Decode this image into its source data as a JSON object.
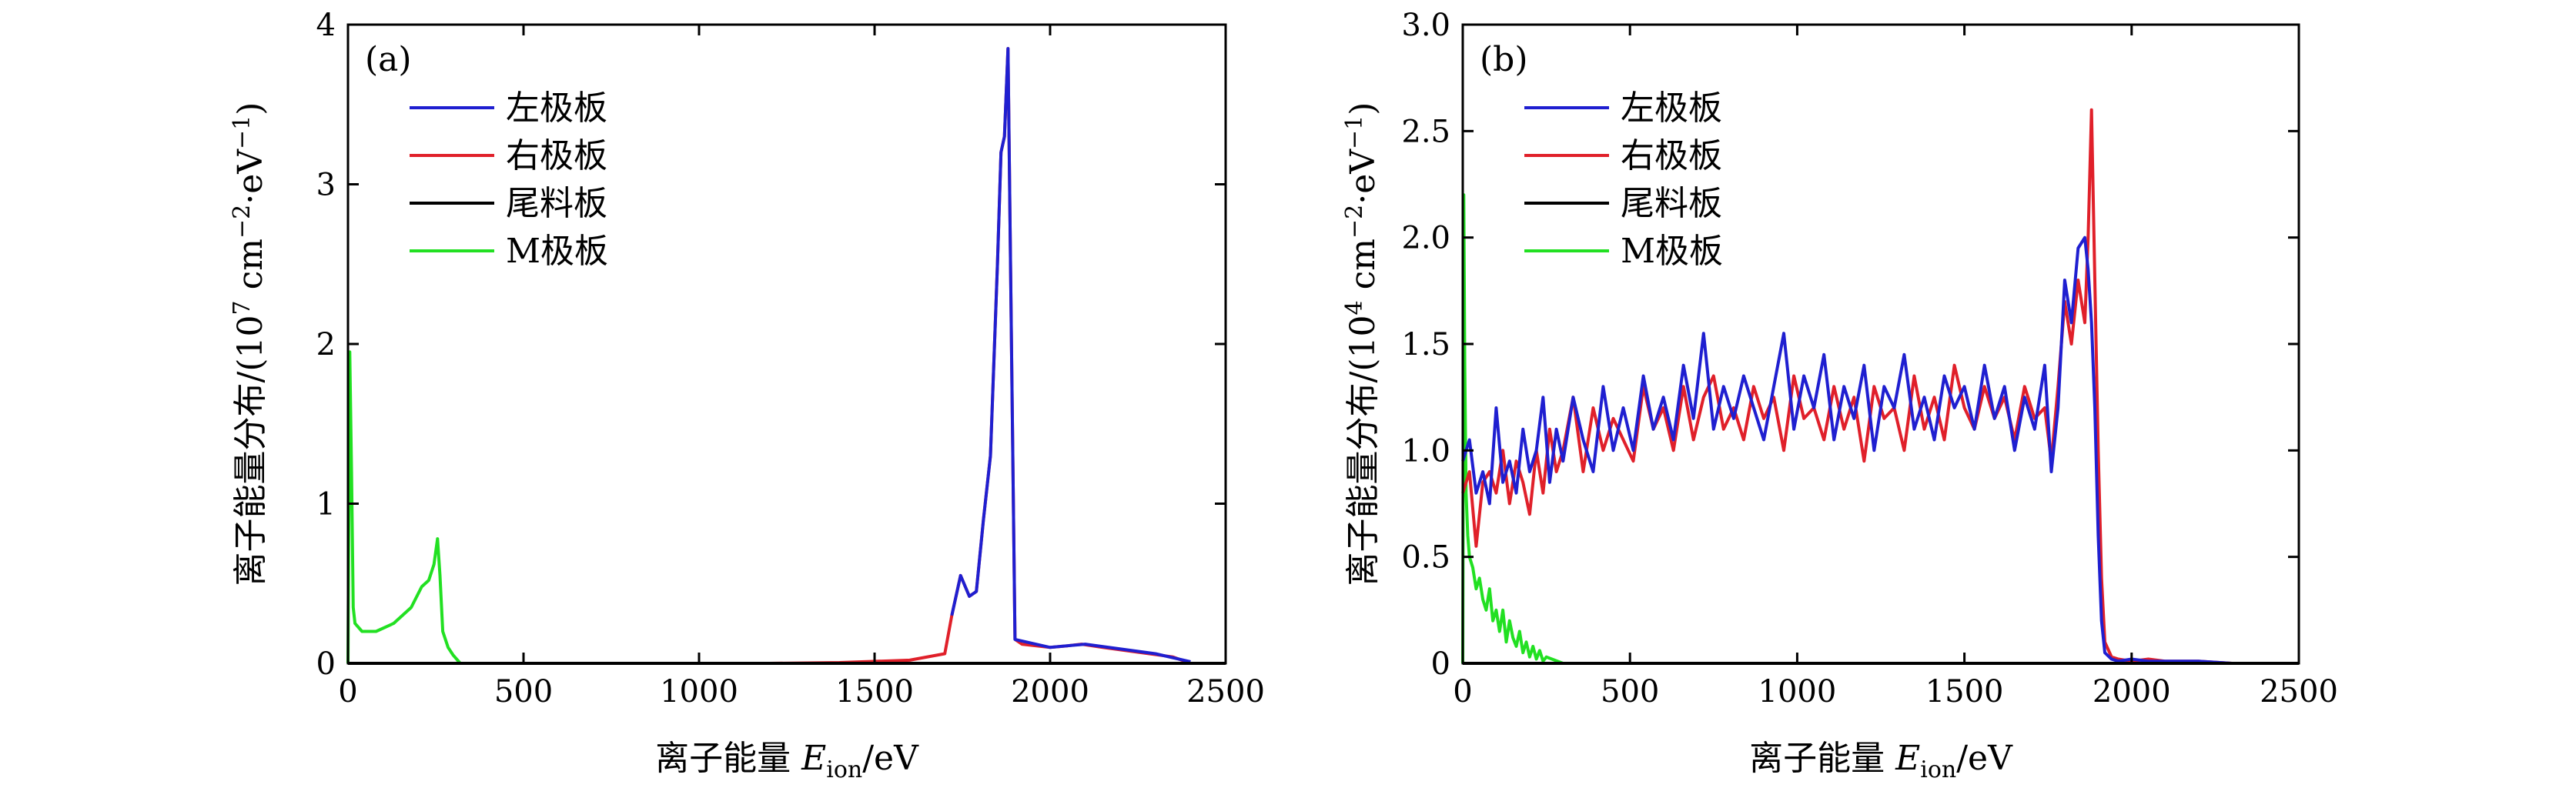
{
  "chart_data": [
    {
      "type": "line",
      "panel_label": "(a)",
      "xlabel": "离子能量 E_ion/eV",
      "xlabel_parts": {
        "prefix": "离子能量 ",
        "symbol": "E",
        "subscript": "ion",
        "suffix": "/eV"
      },
      "ylabel": "离子能量分布/(10^7 cm^-2·eV^-1)",
      "ylabel_parts": {
        "prefix": "离子能量分布/(10",
        "exp": "7",
        "mid": " cm",
        "exp2": "−2",
        "mid2": "·eV",
        "exp3": "−1",
        "suffix": ")"
      },
      "xlim": [
        0,
        2500
      ],
      "ylim": [
        0,
        4
      ],
      "xticks": [
        0,
        500,
        1000,
        1500,
        2000,
        2500
      ],
      "yticks": [
        0,
        1,
        2,
        3,
        4
      ],
      "ytick_labels": [
        "0",
        "1",
        "2",
        "3",
        "4"
      ],
      "legend_position": "upper-left",
      "grid": false,
      "series": [
        {
          "name": "左极板",
          "color": "#1f1fd0",
          "x": [
            1720,
            1745,
            1770,
            1790,
            1810,
            1830,
            1850,
            1860,
            1870,
            1880,
            1890,
            1900,
            2000,
            2100,
            2300,
            2400
          ],
          "y": [
            0.3,
            0.55,
            0.42,
            0.45,
            0.9,
            1.3,
            2.5,
            3.2,
            3.3,
            3.85,
            2.0,
            0.15,
            0.1,
            0.12,
            0.06,
            0.01
          ]
        },
        {
          "name": "右极板",
          "color": "#e0202a",
          "x": [
            0,
            1200,
            1400,
            1600,
            1700,
            1720,
            1745,
            1770,
            1790,
            1810,
            1830,
            1850,
            1860,
            1870,
            1880,
            1890,
            1900,
            1920,
            2000,
            2050,
            2090,
            2150,
            2250,
            2350,
            2400,
            2500
          ],
          "y": [
            0,
            0,
            0.005,
            0.02,
            0.06,
            0.3,
            0.55,
            0.42,
            0.45,
            0.9,
            1.3,
            2.5,
            3.2,
            3.3,
            3.85,
            2.0,
            0.15,
            0.12,
            0.1,
            0.11,
            0.12,
            0.1,
            0.07,
            0.04,
            0.0,
            0
          ]
        },
        {
          "name": "尾料板",
          "color": "#000000",
          "x": [
            0,
            2500
          ],
          "y": [
            0,
            0
          ]
        },
        {
          "name": "M极板",
          "color": "#22e022",
          "x": [
            0,
            5,
            10,
            15,
            20,
            40,
            80,
            130,
            180,
            210,
            230,
            245,
            255,
            262,
            270,
            285,
            300,
            320,
            400,
            800,
            1200
          ],
          "y": [
            0,
            1.95,
            1.2,
            0.35,
            0.25,
            0.2,
            0.2,
            0.25,
            0.35,
            0.48,
            0.52,
            0.62,
            0.78,
            0.55,
            0.2,
            0.1,
            0.05,
            0.0,
            0,
            0,
            0
          ]
        }
      ]
    },
    {
      "type": "line",
      "panel_label": "(b)",
      "xlabel": "离子能量 E_ion/eV",
      "xlabel_parts": {
        "prefix": "离子能量 ",
        "symbol": "E",
        "subscript": "ion",
        "suffix": "/eV"
      },
      "ylabel": "离子能量分布/(10^4 cm^-2·eV^-1)",
      "ylabel_parts": {
        "prefix": "离子能量分布/(10",
        "exp": "4",
        "mid": " cm",
        "exp2": "−2",
        "mid2": "·eV",
        "exp3": "−1",
        "suffix": ")"
      },
      "xlim": [
        0,
        2500
      ],
      "ylim": [
        0,
        3.0
      ],
      "xticks": [
        0,
        500,
        1000,
        1500,
        2000,
        2500
      ],
      "yticks": [
        0,
        0.5,
        1.0,
        1.5,
        2.0,
        2.5,
        3.0
      ],
      "ytick_labels": [
        "0",
        "0.5",
        "1.0",
        "1.5",
        "2.0",
        "2.5",
        "3.0"
      ],
      "legend_position": "upper-left",
      "grid": false,
      "series": [
        {
          "name": "左极板",
          "color": "#1f1fd0",
          "x": [
            0,
            20,
            40,
            60,
            80,
            100,
            120,
            140,
            160,
            180,
            200,
            220,
            240,
            260,
            280,
            300,
            330,
            360,
            390,
            420,
            450,
            480,
            510,
            540,
            570,
            600,
            630,
            660,
            690,
            720,
            750,
            780,
            810,
            840,
            870,
            900,
            930,
            960,
            990,
            1020,
            1050,
            1080,
            1110,
            1140,
            1170,
            1200,
            1230,
            1260,
            1290,
            1320,
            1350,
            1380,
            1410,
            1440,
            1470,
            1500,
            1530,
            1560,
            1590,
            1620,
            1650,
            1680,
            1710,
            1740,
            1760,
            1780,
            1800,
            1820,
            1840,
            1860,
            1870,
            1880,
            1890,
            1900,
            1910,
            1920,
            1940,
            1960,
            2000,
            2050,
            2100,
            2200,
            2300,
            2500
          ],
          "y": [
            0.95,
            1.05,
            0.8,
            0.9,
            0.75,
            1.2,
            0.85,
            0.95,
            0.8,
            1.1,
            0.9,
            1.0,
            1.25,
            0.85,
            1.1,
            0.95,
            1.25,
            1.05,
            0.9,
            1.3,
            1.0,
            1.2,
            1.0,
            1.35,
            1.1,
            1.25,
            1.05,
            1.4,
            1.15,
            1.55,
            1.1,
            1.3,
            1.15,
            1.35,
            1.2,
            1.05,
            1.3,
            1.55,
            1.1,
            1.35,
            1.2,
            1.45,
            1.05,
            1.3,
            1.15,
            1.4,
            1.0,
            1.3,
            1.2,
            1.45,
            1.1,
            1.25,
            1.05,
            1.35,
            1.2,
            1.3,
            1.1,
            1.4,
            1.15,
            1.3,
            1.0,
            1.25,
            1.1,
            1.4,
            0.9,
            1.2,
            1.8,
            1.6,
            1.95,
            2.0,
            1.85,
            1.6,
            1.2,
            0.6,
            0.2,
            0.05,
            0.02,
            0.01,
            0.02,
            0.01,
            0.01,
            0.01,
            0.0,
            0.0
          ]
        },
        {
          "name": "右极板",
          "color": "#e0202a",
          "x": [
            0,
            20,
            40,
            60,
            80,
            100,
            120,
            140,
            160,
            180,
            200,
            220,
            240,
            260,
            280,
            300,
            330,
            360,
            390,
            420,
            450,
            480,
            510,
            540,
            570,
            600,
            630,
            660,
            690,
            720,
            750,
            780,
            810,
            840,
            870,
            900,
            930,
            960,
            990,
            1020,
            1050,
            1080,
            1110,
            1140,
            1170,
            1200,
            1230,
            1260,
            1290,
            1320,
            1350,
            1380,
            1410,
            1440,
            1470,
            1500,
            1530,
            1560,
            1590,
            1620,
            1650,
            1680,
            1710,
            1740,
            1760,
            1780,
            1800,
            1820,
            1840,
            1860,
            1870,
            1880,
            1890,
            1900,
            1910,
            1920,
            1940,
            1960,
            2000,
            2050,
            2100,
            2200,
            2300,
            2500
          ],
          "y": [
            0.8,
            0.9,
            0.55,
            0.85,
            0.9,
            0.8,
            1.0,
            0.75,
            0.95,
            0.85,
            0.7,
            1.0,
            0.8,
            1.1,
            0.9,
            1.0,
            1.25,
            0.9,
            1.2,
            1.0,
            1.15,
            1.05,
            0.95,
            1.3,
            1.1,
            1.2,
            1.0,
            1.3,
            1.05,
            1.25,
            1.35,
            1.1,
            1.2,
            1.05,
            1.3,
            1.15,
            1.25,
            1.0,
            1.35,
            1.15,
            1.2,
            1.05,
            1.3,
            1.1,
            1.25,
            0.95,
            1.3,
            1.15,
            1.2,
            1.0,
            1.35,
            1.1,
            1.25,
            1.05,
            1.4,
            1.2,
            1.1,
            1.3,
            1.15,
            1.25,
            1.05,
            1.3,
            1.15,
            1.2,
            0.95,
            1.3,
            1.7,
            1.5,
            1.8,
            1.6,
            2.0,
            2.6,
            1.8,
            1.0,
            0.4,
            0.1,
            0.03,
            0.02,
            0.01,
            0.02,
            0.01,
            0.01,
            0.0,
            0.0
          ]
        },
        {
          "name": "尾料板",
          "color": "#000000",
          "x": [
            0,
            2500
          ],
          "y": [
            0,
            0
          ]
        },
        {
          "name": "M极板",
          "color": "#22e022",
          "x": [
            0,
            3,
            6,
            10,
            15,
            20,
            30,
            40,
            50,
            60,
            70,
            80,
            90,
            100,
            110,
            120,
            130,
            140,
            150,
            160,
            170,
            180,
            190,
            200,
            210,
            220,
            230,
            240,
            250,
            300,
            2500
          ],
          "y": [
            0.0,
            2.2,
            1.4,
            0.8,
            0.6,
            0.5,
            0.45,
            0.35,
            0.4,
            0.3,
            0.25,
            0.35,
            0.2,
            0.25,
            0.15,
            0.25,
            0.1,
            0.2,
            0.12,
            0.08,
            0.15,
            0.05,
            0.1,
            0.03,
            0.08,
            0.02,
            0.06,
            0.01,
            0.03,
            0.0,
            0.0
          ]
        }
      ]
    }
  ]
}
